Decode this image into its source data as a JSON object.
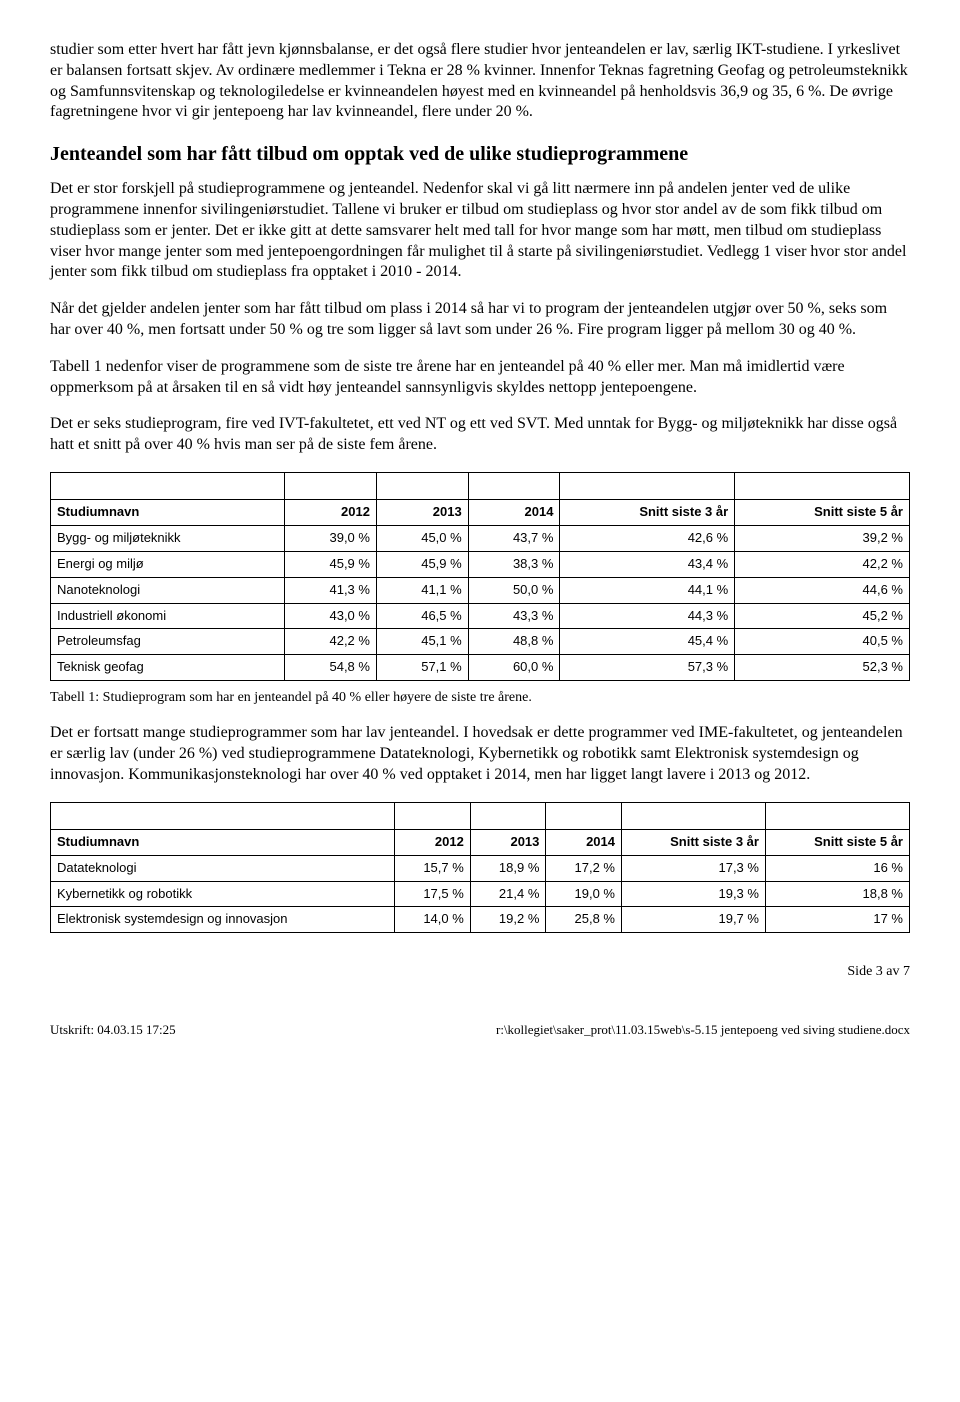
{
  "paragraphs": {
    "p1": "studier som etter hvert har fått jevn kjønnsbalanse, er det også flere studier hvor jenteandelen er lav, særlig IKT-studiene. I yrkeslivet er balansen fortsatt skjev. Av ordinære medlemmer i Tekna er 28 % kvinner. Innenfor Teknas fagretning Geofag og petroleumsteknikk og Samfunnsvitenskap og teknologiledelse er kvinneandelen høyest med en kvinneandel på henholdsvis 36,9 og 35, 6 %. De øvrige fagretningene hvor vi gir jentepoeng har lav kvinneandel, flere under 20 %.",
    "h2": "Jenteandel som har fått tilbud om opptak ved de ulike studieprogrammene",
    "p2": "Det er stor forskjell på studieprogrammene og jenteandel. Nedenfor skal vi gå litt nærmere inn på andelen jenter ved de ulike programmene innenfor sivilingeniørstudiet. Tallene vi bruker er tilbud om studieplass og hvor stor andel av de som fikk tilbud om studieplass som er jenter. Det er ikke gitt at dette samsvarer helt med tall for hvor mange som har møtt, men tilbud om studieplass viser hvor mange jenter som med jentepoengordningen får mulighet til å starte på sivilingeniørstudiet. Vedlegg 1 viser hvor stor andel jenter som fikk tilbud om studieplass fra opptaket i 2010 - 2014.",
    "p3": "Når det gjelder andelen jenter som har fått tilbud om plass i 2014 så har vi to program der jenteandelen utgjør over 50 %, seks som har over 40 %, men fortsatt under 50 % og tre som ligger så lavt som under 26 %. Fire program ligger på mellom 30 og 40 %.",
    "p4": "Tabell 1 nedenfor viser de programmene som de siste tre årene har en jenteandel på 40 % eller mer. Man må imidlertid være oppmerksom på at årsaken til en så vidt høy jenteandel sannsynligvis skyldes nettopp jentepoengene.",
    "p5": "Det er seks studieprogram, fire ved IVT-fakultetet, ett ved NT og ett ved SVT. Med unntak for Bygg- og miljøteknikk har disse også hatt et snitt på over 40 % hvis man ser på de siste fem årene.",
    "caption1": "Tabell 1: Studieprogram som har en jenteandel på 40 % eller høyere de siste tre årene.",
    "p6": "Det er fortsatt mange studieprogrammer som har lav jenteandel. I hovedsak er dette programmer ved IME-fakultetet, og jenteandelen er særlig lav (under 26 %) ved studieprogrammene Datateknologi, Kybernetikk og robotikk samt Elektronisk systemdesign og innovasjon. Kommunikasjonsteknologi har over 40 % ved opptaket i 2014, men har ligget langt lavere i 2013 og 2012."
  },
  "table1": {
    "headers": [
      "Studiumnavn",
      "2012",
      "2013",
      "2014",
      "Snitt siste 3 år",
      "Snitt siste 5 år"
    ],
    "rows": [
      [
        "Bygg- og miljøteknikk",
        "39,0 %",
        "45,0 %",
        "43,7 %",
        "42,6 %",
        "39,2 %"
      ],
      [
        "Energi og miljø",
        "45,9 %",
        "45,9 %",
        "38,3 %",
        "43,4 %",
        "42,2 %"
      ],
      [
        "Nanoteknologi",
        "41,3 %",
        "41,1 %",
        "50,0 %",
        "44,1 %",
        "44,6 %"
      ],
      [
        "Industriell økonomi",
        "43,0 %",
        "46,5 %",
        "43,3 %",
        "44,3 %",
        "45,2 %"
      ],
      [
        "Petroleumsfag",
        "42,2 %",
        "45,1 %",
        "48,8 %",
        "45,4 %",
        "40,5 %"
      ],
      [
        "Teknisk geofag",
        "54,8 %",
        "57,1 %",
        "60,0 %",
        "57,3 %",
        "52,3 %"
      ]
    ]
  },
  "table2": {
    "headers": [
      "Studiumnavn",
      "2012",
      "2013",
      "2014",
      "Snitt siste 3 år",
      "Snitt siste 5 år"
    ],
    "rows": [
      [
        "Datateknologi",
        "15,7 %",
        "18,9 %",
        "17,2 %",
        "17,3 %",
        "16 %"
      ],
      [
        "Kybernetikk og robotikk",
        "17,5 %",
        "21,4 %",
        "19,0 %",
        "19,3 %",
        "18,8 %"
      ],
      [
        "Elektronisk systemdesign og innovasjon",
        "14,0 %",
        "19,2 %",
        "25,8 %",
        "19,7 %",
        "17 %"
      ]
    ]
  },
  "footer": {
    "page": "Side 3 av 7",
    "left": "Utskrift: 04.03.15 17:25",
    "right": "r:\\kollegiet\\saker_prot\\11.03.15web\\s-5.15 jentepoeng ved siving studiene.docx"
  }
}
